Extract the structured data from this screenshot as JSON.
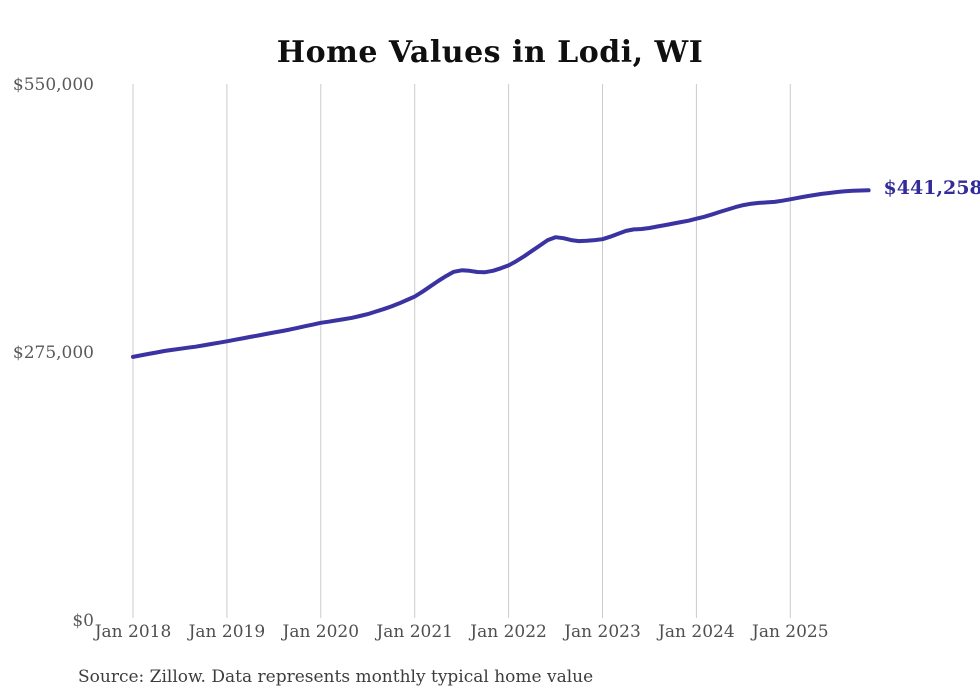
{
  "title": "Home Values in Lodi, WI",
  "source_note": "Source: Zillow. Data represents monthly typical home value",
  "end_label": "$441,258",
  "colors": {
    "line": "#3a33a1",
    "end_label": "#322b99",
    "gridline": "#cbcbcb",
    "title_text": "#0f0f0f",
    "y_axis_text": "#595959",
    "x_axis_text": "#4f4f4f",
    "source_text": "#3d3d3d",
    "background": "#ffffff"
  },
  "chart_data": {
    "type": "line",
    "title": "Home Values in Lodi, WI",
    "xlabel": "",
    "ylabel": "",
    "ylim": [
      0,
      550000
    ],
    "y_ticks": [
      0,
      275000,
      550000
    ],
    "y_tick_labels": [
      "$0",
      "$275,000",
      "$550,000"
    ],
    "x_tick_labels": [
      "Jan 2018",
      "Jan 2019",
      "Jan 2020",
      "Jan 2021",
      "Jan 2022",
      "Jan 2023",
      "Jan 2024",
      "Jan 2025"
    ],
    "x_range": {
      "start": "Jan 2018",
      "end": "Nov 2025",
      "frequency": "monthly"
    },
    "grid": "vertical-only",
    "legend": "none",
    "final_value": 441258,
    "final_value_label": "$441,258",
    "series": [
      {
        "name": "Typical home value",
        "values": [
          270000,
          271500,
          273000,
          274500,
          276000,
          277200,
          278300,
          279400,
          280500,
          281800,
          283200,
          284600,
          286000,
          287500,
          289000,
          290500,
          292000,
          293500,
          295000,
          296500,
          298000,
          299800,
          301500,
          303200,
          305000,
          306200,
          307500,
          308800,
          310200,
          312000,
          314000,
          316500,
          319000,
          321800,
          325000,
          328500,
          332000,
          337000,
          342500,
          348000,
          353000,
          357500,
          359000,
          358500,
          357200,
          357000,
          358500,
          361000,
          364000,
          368500,
          373500,
          379000,
          384500,
          390000,
          393000,
          392000,
          390000,
          389000,
          389300,
          390000,
          391000,
          393500,
          396500,
          399500,
          401000,
          401500,
          402500,
          404000,
          405500,
          407000,
          408500,
          410000,
          412000,
          414000,
          416500,
          419000,
          421500,
          424000,
          426000,
          427500,
          428300,
          428800,
          429300,
          430500,
          432000,
          433500,
          435000,
          436300,
          437500,
          438500,
          439500,
          440200,
          440800,
          441000,
          441258
        ]
      }
    ]
  }
}
